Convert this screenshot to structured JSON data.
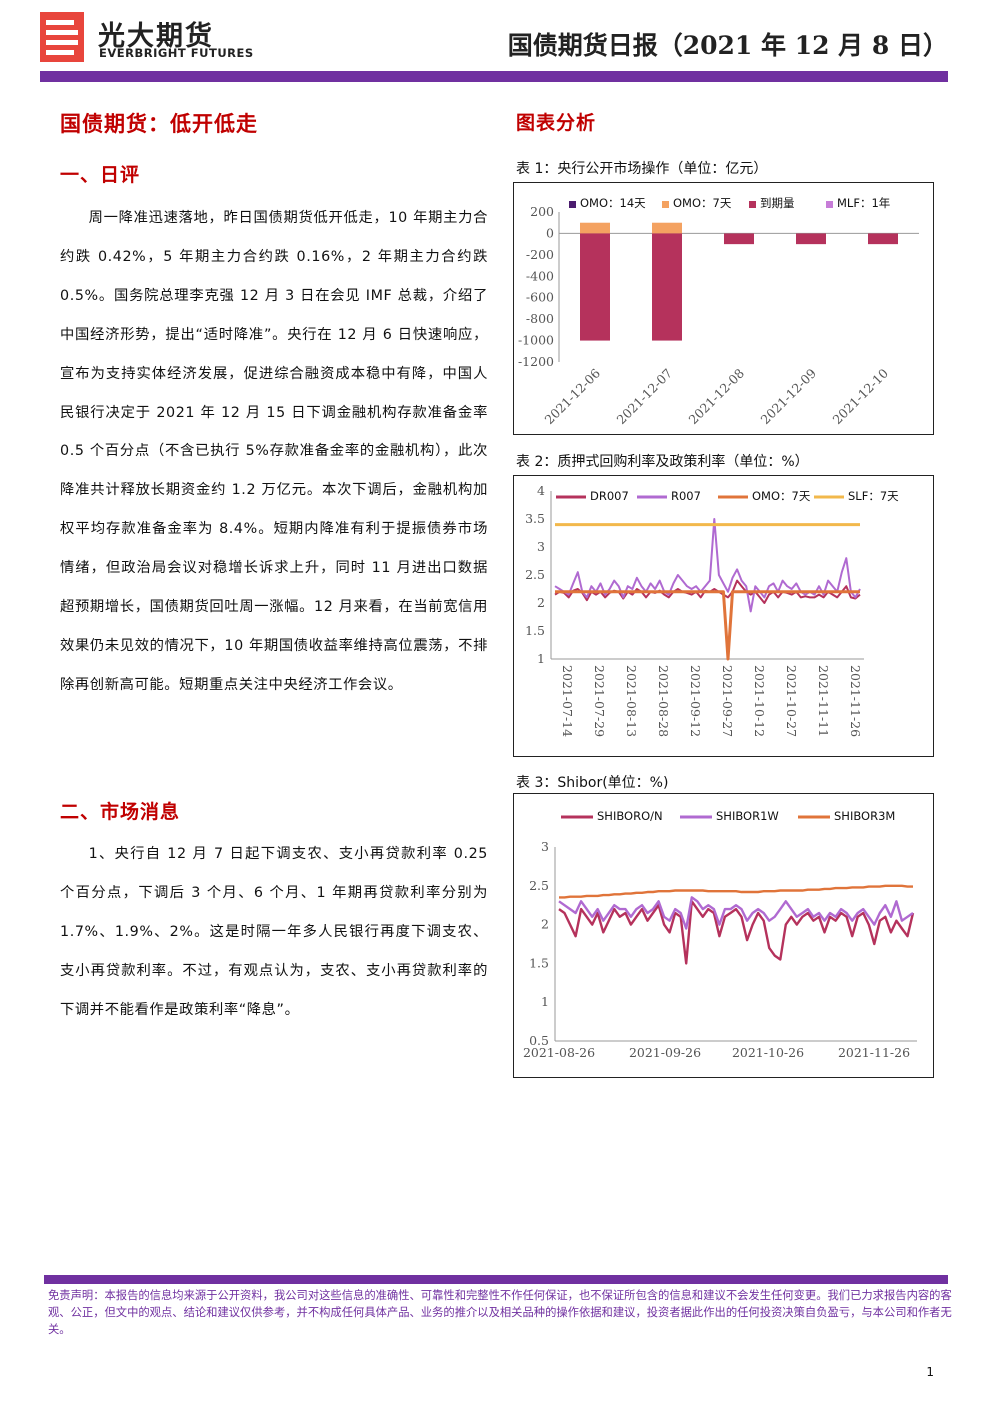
{
  "header": {
    "logo_cn": "光大期货",
    "logo_en": "EVERBRIGHT FUTURES",
    "report_title": "国债期货日报（2021 年 12 月 8 日）",
    "brand_color": "#7030a0",
    "logo_color": "#e8453c"
  },
  "left": {
    "main_title": "国债期货：低开低走",
    "section1_title": "一、日评",
    "section1_text": "周一降准迅速落地，昨日国债期货低开低走，10 年期主力合约跌 0.42%，5 年期主力合约跌 0.16%，2 年期主力合约跌 0.5%。国务院总理李克强 12 月 3 日在会见 IMF 总裁，介绍了中国经济形势，提出“适时降准”。央行在 12 月 6 日快速响应，宣布为支持实体经济发展，促进综合融资成本稳中有降，中国人民银行决定于 2021 年 12 月 15 日下调金融机构存款准备金率 0.5 个百分点（不含已执行 5%存款准备金率的金融机构），此次降准共计释放长期资金约 1.2 万亿元。本次下调后，金融机构加权平均存款准备金率为 8.4%。短期内降准有利于提振债券市场情绪，但政治局会议对稳增长诉求上升，同时 11 月进出口数据超预期增长，国债期货回吐周一涨幅。12 月来看，在当前宽信用效果仍未见效的情况下，10 年期国债收益率维持高位震荡，不排除再创新高可能。短期重点关注中央经济工作会议。",
    "section2_title": "二、市场消息",
    "section2_text": "1、央行自 12 月 7 日起下调支农、支小再贷款利率 0.25 个百分点，下调后 3 个月、6 个月、1 年期再贷款利率分别为 1.7%、1.9%、2%。这是时隔一年多人民银行再度下调支农、支小再贷款利率。不过，有观点认为，支农、支小再贷款利率的下调并不能看作是政策利率“降息”。"
  },
  "right": {
    "title": "图表分析",
    "chart1_caption": "表 1：央行公开市场操作（单位：亿元）",
    "chart2_caption": "表 2：质押式回购利率及政策利率（单位：%）",
    "chart3_caption": "表 3：Shibor(单位：%)"
  },
  "chart_data": [
    {
      "type": "bar",
      "categories": [
        "2021-12-06",
        "2021-12-07",
        "2021-12-08",
        "2021-12-09",
        "2021-12-10"
      ],
      "series": [
        {
          "name": "OMO：14天",
          "color": "#4b1c6e",
          "values": [
            0,
            0,
            0,
            0,
            0
          ]
        },
        {
          "name": "OMO：7天",
          "color": "#f4a261",
          "values": [
            100,
            100,
            0,
            0,
            0
          ]
        },
        {
          "name": "到期量",
          "color": "#b5325c",
          "values": [
            -1000,
            -1000,
            -100,
            -100,
            -100
          ]
        },
        {
          "name": "MLF：1年",
          "color": "#c77dd8",
          "values": [
            0,
            0,
            0,
            0,
            0
          ]
        }
      ],
      "ylim": [
        -1200,
        200
      ],
      "yticks": [
        200,
        0,
        -200,
        -400,
        -600,
        -800,
        -1000,
        -1200
      ],
      "legend": "top"
    },
    {
      "type": "line",
      "x_ticks": [
        "2021-07-14",
        "2021-07-29",
        "2021-08-13",
        "2021-08-28",
        "2021-09-12",
        "2021-09-27",
        "2021-10-12",
        "2021-10-27",
        "2021-11-11",
        "2021-11-26"
      ],
      "ylim": [
        1,
        4
      ],
      "yticks": [
        "4",
        "3.5",
        "3",
        "2.5",
        "2",
        "1.5",
        "1"
      ],
      "legend": "top",
      "series": [
        {
          "name": "DR007",
          "color": "#b5325c",
          "values": [
            2.15,
            2.2,
            2.18,
            2.1,
            2.22,
            2.25,
            2.18,
            2.05,
            2.2,
            2.15,
            2.2,
            2.1,
            2.18,
            2.22,
            2.2,
            2.08,
            2.2,
            2.15,
            2.25,
            2.2,
            2.1,
            2.2,
            2.18,
            2.22,
            2.15,
            2.1,
            2.2,
            2.25,
            2.2,
            2.18,
            2.15,
            2.2,
            2.1,
            2.22,
            2.2,
            2.25,
            2.2,
            2.15,
            2.1,
            2.2,
            2.4,
            2.3,
            2.2,
            2.15,
            2.2,
            2.1,
            2.0,
            2.15,
            2.2,
            2.1,
            2.2,
            2.18,
            2.15,
            2.2,
            2.1,
            2.12,
            2.1,
            2.1,
            2.15,
            2.1,
            2.2,
            2.15,
            2.1,
            2.2,
            2.3,
            2.1,
            2.08,
            2.15
          ]
        },
        {
          "name": "R007",
          "color": "#b06ad1",
          "values": [
            2.3,
            2.25,
            2.2,
            2.15,
            2.35,
            2.55,
            2.2,
            2.1,
            2.3,
            2.2,
            2.35,
            2.15,
            2.25,
            2.4,
            2.3,
            2.1,
            2.3,
            2.25,
            2.45,
            2.3,
            2.2,
            2.35,
            2.25,
            2.4,
            2.2,
            2.15,
            2.35,
            2.5,
            2.4,
            2.3,
            2.25,
            2.3,
            2.2,
            2.3,
            2.4,
            3.5,
            2.5,
            2.35,
            2.2,
            2.45,
            2.6,
            2.4,
            2.3,
            1.85,
            2.3,
            2.2,
            2.1,
            2.3,
            2.35,
            2.2,
            2.4,
            2.3,
            2.25,
            2.35,
            2.2,
            2.15,
            2.2,
            2.15,
            2.3,
            2.15,
            2.4,
            2.3,
            2.2,
            2.55,
            2.8,
            2.2,
            2.1,
            2.25
          ]
        },
        {
          "name": "OMO：7天",
          "color": "#e0743a",
          "values": [
            2.2,
            2.2,
            2.2,
            2.2,
            2.2,
            2.2,
            2.2,
            2.2,
            2.2,
            2.2,
            2.2,
            2.2,
            2.2,
            2.2,
            2.2,
            2.2,
            2.2,
            2.2,
            2.2,
            2.2,
            2.2,
            2.2,
            2.2,
            2.2,
            2.2,
            2.2,
            2.2,
            2.2,
            2.2,
            2.2,
            2.2,
            2.2,
            2.2,
            2.2,
            2.2,
            2.2,
            2.2,
            2.2,
            1.0,
            2.2,
            2.2,
            2.2,
            2.2,
            2.2,
            2.2,
            2.2,
            2.2,
            2.2,
            2.2,
            2.2,
            2.2,
            2.2,
            2.2,
            2.2,
            2.2,
            2.2,
            2.2,
            2.2,
            2.2,
            2.2,
            2.2,
            2.2,
            2.2,
            2.2,
            2.2,
            2.2,
            2.2,
            2.2
          ]
        },
        {
          "name": "SLF：7天",
          "color": "#f2b84b",
          "values": [
            3.4,
            3.4,
            3.4,
            3.4,
            3.4,
            3.4,
            3.4,
            3.4,
            3.4,
            3.4,
            3.4,
            3.4,
            3.4,
            3.4,
            3.4,
            3.4,
            3.4,
            3.4,
            3.4,
            3.4,
            3.4,
            3.4,
            3.4,
            3.4,
            3.4,
            3.4,
            3.4,
            3.4,
            3.4,
            3.4,
            3.4,
            3.4,
            3.4,
            3.4,
            3.4,
            3.4,
            3.4,
            3.4,
            3.4,
            3.4,
            3.4,
            3.4,
            3.4,
            3.4,
            3.4,
            3.4,
            3.4,
            3.4,
            3.4,
            3.4,
            3.4,
            3.4,
            3.4,
            3.4,
            3.4,
            3.4,
            3.4,
            3.4,
            3.4,
            3.4,
            3.4,
            3.4,
            3.4,
            3.4,
            3.4,
            3.4,
            3.4,
            3.4
          ]
        }
      ]
    },
    {
      "type": "line",
      "x_ticks": [
        "2021-08-26",
        "2021-09-26",
        "2021-10-26",
        "2021-11-26"
      ],
      "ylim": [
        0.5,
        3
      ],
      "yticks": [
        "3",
        "2.5",
        "2",
        "1.5",
        "1",
        "0.5"
      ],
      "legend": "top",
      "series": [
        {
          "name": "SHIBORO/N",
          "color": "#b5325c",
          "values": [
            2.2,
            2.15,
            2.0,
            1.85,
            2.2,
            2.1,
            2.0,
            2.15,
            1.9,
            2.05,
            2.2,
            2.1,
            2.15,
            2.0,
            2.1,
            2.2,
            2.05,
            2.15,
            2.25,
            2.0,
            1.9,
            2.15,
            2.1,
            1.5,
            2.3,
            2.2,
            2.1,
            2.2,
            2.15,
            1.85,
            2.1,
            2.15,
            2.2,
            2.1,
            1.8,
            2.0,
            2.15,
            2.05,
            1.7,
            1.6,
            1.55,
            2.0,
            2.1,
            2.0,
            2.1,
            2.15,
            2.05,
            2.1,
            1.9,
            2.1,
            2.05,
            2.15,
            2.1,
            1.85,
            2.1,
            2.15,
            2.0,
            1.75,
            2.05,
            2.1,
            1.9,
            2.05,
            1.95,
            1.85,
            2.15
          ]
        },
        {
          "name": "SHIBOR1W",
          "color": "#b06ad1",
          "values": [
            2.3,
            2.25,
            2.2,
            2.15,
            2.3,
            2.2,
            2.1,
            2.2,
            2.05,
            2.15,
            2.25,
            2.2,
            2.2,
            2.1,
            2.2,
            2.25,
            2.15,
            2.2,
            2.3,
            2.1,
            2.05,
            2.2,
            2.15,
            1.95,
            2.35,
            2.3,
            2.2,
            2.25,
            2.2,
            2.0,
            2.2,
            2.2,
            2.25,
            2.2,
            2.05,
            2.15,
            2.2,
            2.15,
            2.05,
            2.1,
            2.2,
            2.3,
            2.2,
            2.1,
            2.15,
            2.2,
            2.1,
            2.15,
            2.05,
            2.15,
            2.1,
            2.2,
            2.15,
            2.05,
            2.15,
            2.2,
            2.1,
            2.0,
            2.15,
            2.25,
            2.1,
            2.3,
            2.05,
            2.1,
            2.15
          ]
        },
        {
          "name": "SHIBOR3M",
          "color": "#e0743a",
          "values": [
            2.35,
            2.35,
            2.36,
            2.36,
            2.36,
            2.37,
            2.37,
            2.37,
            2.38,
            2.38,
            2.39,
            2.39,
            2.4,
            2.4,
            2.41,
            2.41,
            2.42,
            2.42,
            2.43,
            2.43,
            2.43,
            2.44,
            2.44,
            2.44,
            2.44,
            2.44,
            2.44,
            2.43,
            2.43,
            2.43,
            2.43,
            2.43,
            2.43,
            2.42,
            2.42,
            2.42,
            2.42,
            2.43,
            2.43,
            2.43,
            2.44,
            2.44,
            2.44,
            2.44,
            2.44,
            2.45,
            2.45,
            2.45,
            2.46,
            2.46,
            2.47,
            2.47,
            2.47,
            2.48,
            2.48,
            2.48,
            2.49,
            2.49,
            2.49,
            2.5,
            2.5,
            2.5,
            2.5,
            2.49,
            2.49
          ]
        }
      ]
    }
  ],
  "footer": {
    "disclaimer": "免责声明：本报告的信息均来源于公开资料，我公司对这些信息的准确性、可靠性和完整性不作任何保证，也不保证所包含的信息和建议不会发生任何变更。我们已力求报告内容的客观、公正，但文中的观点、结论和建议仅供参考，并不构成任何具体产品、业务的推介以及相关品种的操作依据和建议，投资者据此作出的任何投资决策自负盈亏，与本公司和作者无关。",
    "page_number": "1"
  }
}
